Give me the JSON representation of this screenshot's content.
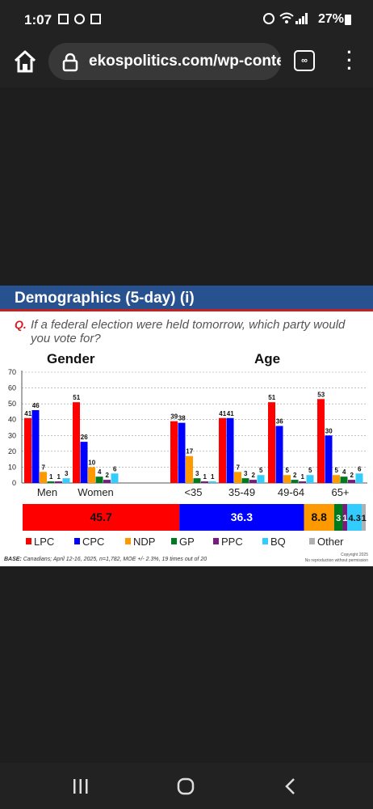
{
  "status_bar": {
    "time": "1:07",
    "battery": "27%"
  },
  "browser": {
    "url": "ekospolitics.com/wp-content",
    "tab_icon_label": "∞"
  },
  "slide": {
    "title": "Demographics (5-day) (i)",
    "question_label": "Q.",
    "question": "If a federal election were held tomorrow, which party would you vote for?",
    "gender_heading": "Gender",
    "age_heading": "Age",
    "base_label": "BASE:",
    "base_text": "Canadians; April 12-16, 2025, n=1,782, MOE +/- 2.3%, 19 times out of 20",
    "copyright": "Copyright 2025",
    "copyright_sub": "No reproduction without permission"
  },
  "colors": {
    "LPC": "#ff0000",
    "CPC": "#0000ff",
    "NDP": "#ff9900",
    "GP": "#007a1f",
    "PPC": "#7a1a80",
    "BQ": "#33ccff",
    "Other": "#b0b0b0"
  },
  "chart_data": [
    {
      "type": "bar",
      "categories": [
        "Men",
        "Women",
        "<35",
        "35-49",
        "49-64",
        "65+"
      ],
      "ylim": [
        0,
        70
      ],
      "yticks": [
        "0",
        "10",
        "20",
        "30",
        "40",
        "50",
        "60",
        "70"
      ],
      "grid": true,
      "series": [
        {
          "name": "LPC",
          "values": [
            41,
            51,
            39,
            41,
            51,
            53
          ]
        },
        {
          "name": "CPC",
          "values": [
            46,
            26,
            38,
            41,
            36,
            30
          ]
        },
        {
          "name": "NDP",
          "values": [
            7,
            10,
            17,
            7,
            5,
            5
          ]
        },
        {
          "name": "GP",
          "values": [
            1,
            4,
            3,
            3,
            2,
            4
          ]
        },
        {
          "name": "PPC",
          "values": [
            1,
            2,
            1,
            2,
            1,
            2
          ]
        },
        {
          "name": "BQ",
          "values": [
            3,
            6,
            1,
            5,
            5,
            6
          ]
        }
      ],
      "value_labels": [
        [
          "41",
          "46",
          "7",
          "1",
          "1",
          "3"
        ],
        [
          "51",
          "26",
          "10",
          "4",
          "2",
          "6"
        ],
        [
          "39",
          "38",
          "17",
          "3",
          "1",
          "1"
        ],
        [
          "41",
          "41",
          "7",
          "3",
          "2",
          "5"
        ],
        [
          "51",
          "36",
          "5",
          "2",
          "1",
          "5"
        ],
        [
          "53",
          "30",
          "5",
          "4",
          "2",
          "6"
        ]
      ]
    },
    {
      "type": "bar",
      "stacked": true,
      "series": [
        {
          "name": "LPC",
          "value": 45.7,
          "label": "45.7"
        },
        {
          "name": "CPC",
          "value": 36.3,
          "label": "36.3"
        },
        {
          "name": "NDP",
          "value": 8.8,
          "label": "8.8"
        },
        {
          "name": "GP",
          "value": 2.5,
          "label": "3"
        },
        {
          "name": "PPC",
          "value": 1.3,
          "label": "1"
        },
        {
          "name": "BQ",
          "value": 4.3,
          "label": "4.3"
        },
        {
          "name": "Other",
          "value": 1.1,
          "label": "1"
        }
      ],
      "legend": [
        "LPC",
        "CPC",
        "NDP",
        "GP",
        "PPC",
        "BQ",
        "Other"
      ],
      "legend_position": "bottom"
    }
  ]
}
